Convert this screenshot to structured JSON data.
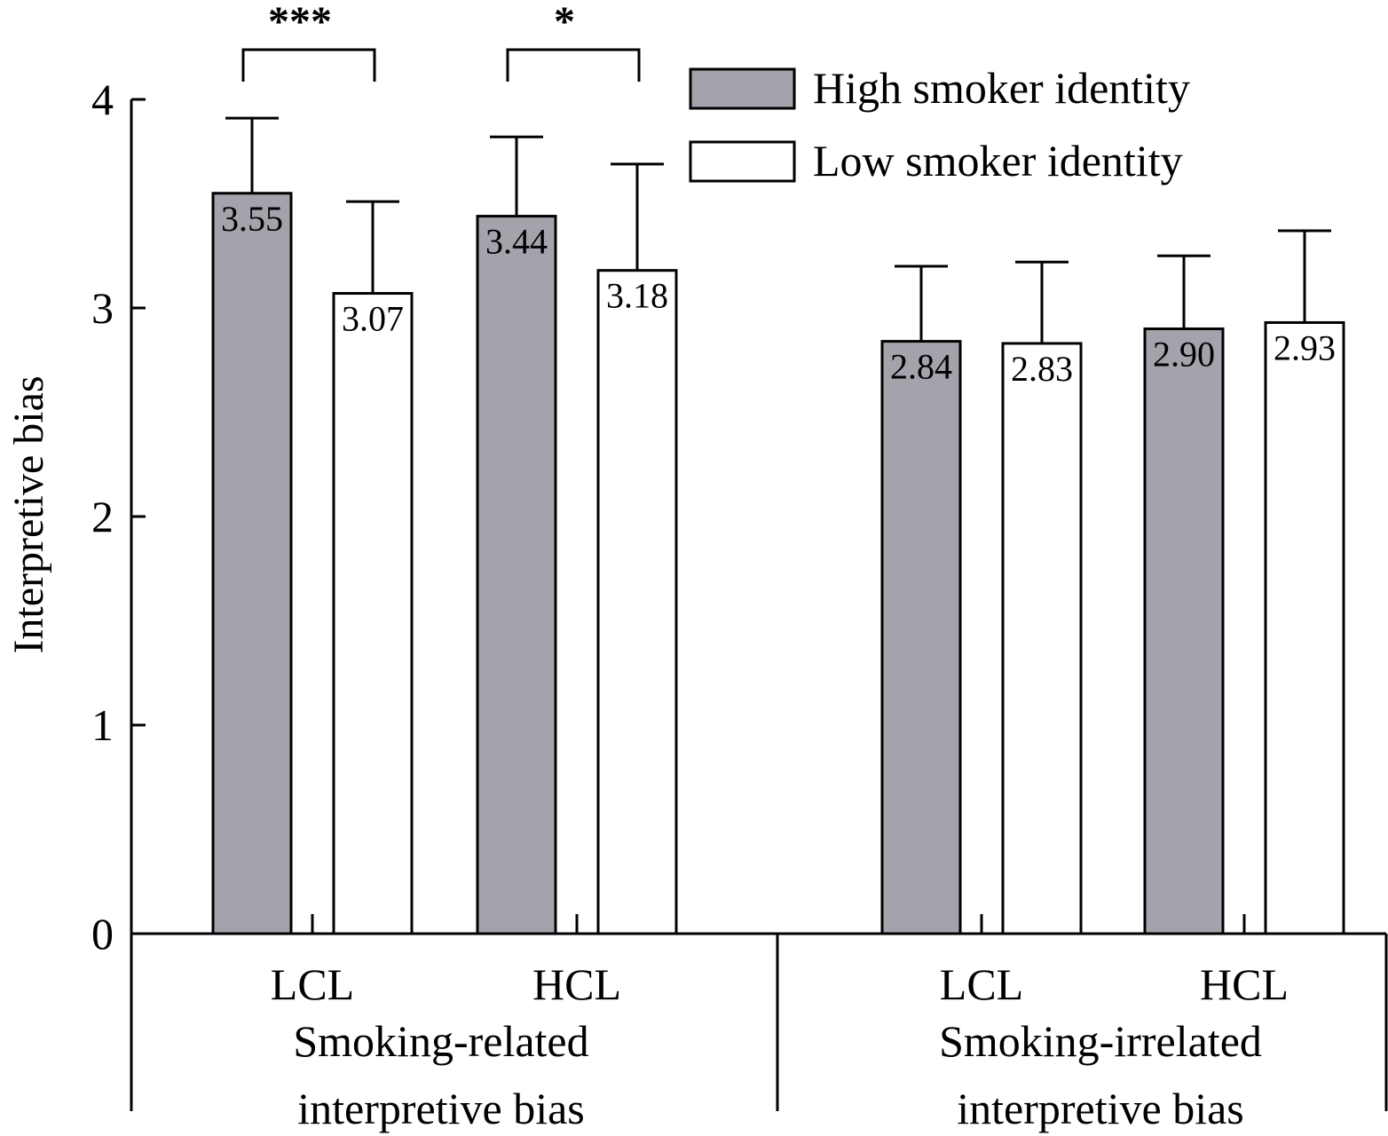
{
  "chart_data": {
    "type": "bar",
    "ylabel": "Interpretive bias",
    "ylim": [
      0,
      4
    ],
    "yticks": [
      "0",
      "1",
      "2",
      "3",
      "4"
    ],
    "grid": false,
    "legend_position": "top-right",
    "sections": [
      {
        "label_line1": "Smoking-related",
        "label_line2": "interpretive bias",
        "groups": [
          {
            "label": "LCL",
            "values": [
              3.55,
              3.07
            ],
            "errors": [
              0.36,
              0.44
            ],
            "value_labels": [
              "3.55",
              "3.07"
            ]
          },
          {
            "label": "HCL",
            "values": [
              3.44,
              3.18
            ],
            "errors": [
              0.38,
              0.51
            ],
            "value_labels": [
              "3.44",
              "3.18"
            ]
          }
        ]
      },
      {
        "label_line1": "Smoking-irrelated",
        "label_line2": "interpretive bias",
        "groups": [
          {
            "label": "LCL",
            "values": [
              2.84,
              2.83
            ],
            "errors": [
              0.36,
              0.39
            ],
            "value_labels": [
              "2.84",
              "2.83"
            ]
          },
          {
            "label": "HCL",
            "values": [
              2.9,
              2.93
            ],
            "errors": [
              0.35,
              0.44
            ],
            "value_labels": [
              "2.90",
              "2.93"
            ]
          }
        ]
      }
    ],
    "series": [
      {
        "name": "High smoker identity",
        "color": "#a4a2ab"
      },
      {
        "name": "Low smoker identity",
        "color": "#ffffff"
      }
    ],
    "significance": [
      {
        "section": 0,
        "group": 0,
        "label": "***"
      },
      {
        "section": 0,
        "group": 1,
        "label": "*"
      }
    ]
  }
}
